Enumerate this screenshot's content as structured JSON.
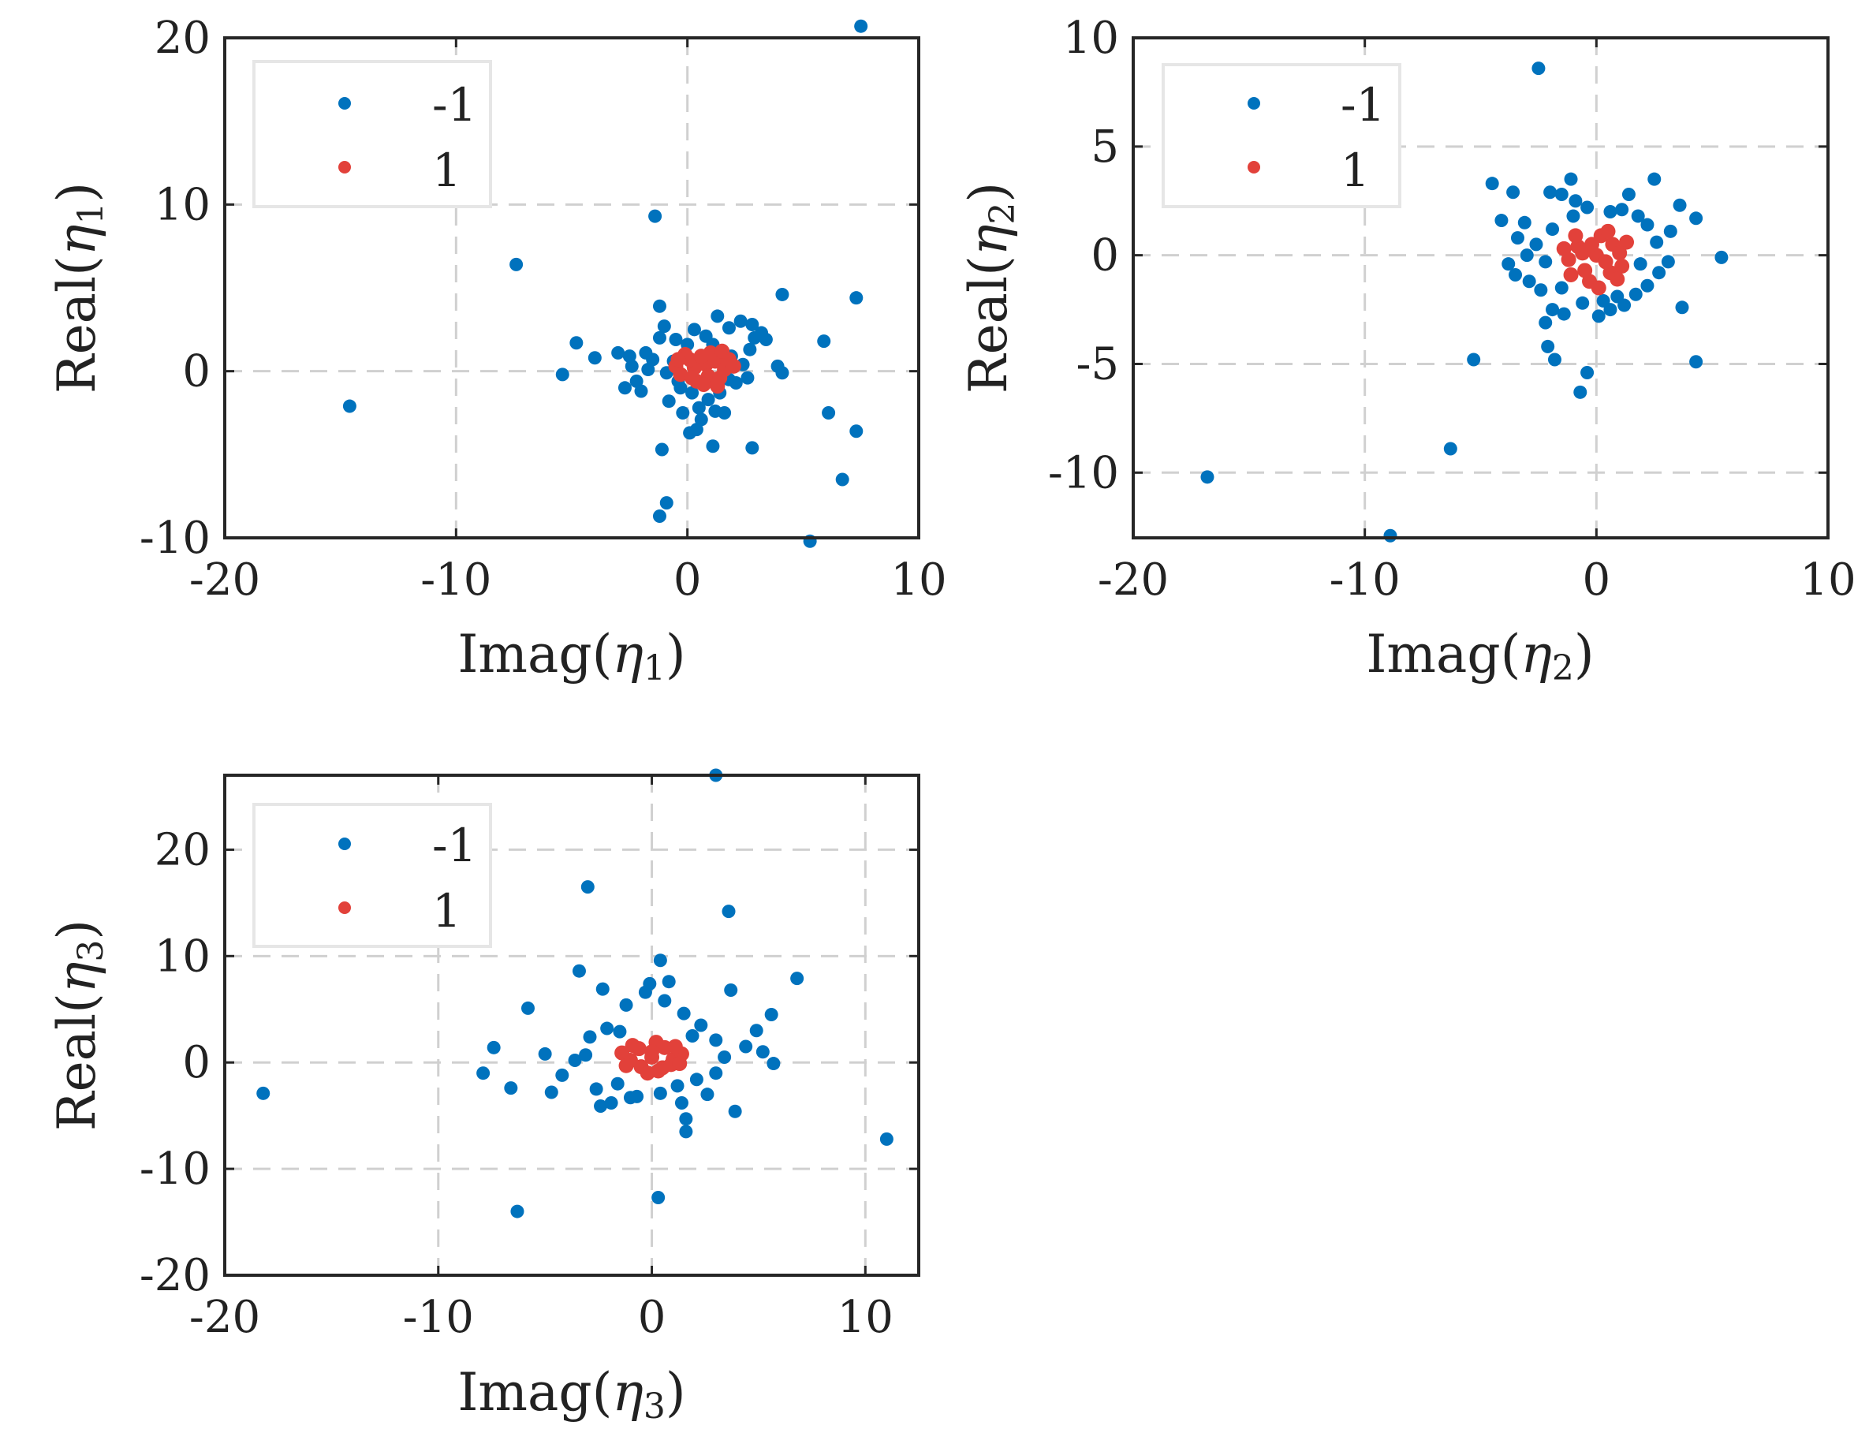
{
  "colors": {
    "series_neg": "#0072bd",
    "series_pos": "#e2413a",
    "grid": "#d0d0d0",
    "axes": "#262626",
    "legend_border": "#e6e6e6"
  },
  "chart_data": [
    {
      "type": "scatter",
      "id": "eta1",
      "xlabel_prefix": "Imag(",
      "xlabel_sym": "η",
      "xlabel_sub": "1",
      "xlabel_suffix": ")",
      "ylabel_prefix": "Real(",
      "ylabel_sym": "η",
      "ylabel_sub": "1",
      "ylabel_suffix": ")",
      "xlim": [
        -20,
        10
      ],
      "ylim": [
        -10,
        20
      ],
      "xticks": [
        -20,
        -10,
        0,
        10
      ],
      "xtick_labels": [
        "-20",
        "-10",
        "0",
        "10"
      ],
      "yticks": [
        -10,
        0,
        10,
        20
      ],
      "ytick_labels": [
        "-10",
        "0",
        "10",
        "20"
      ],
      "grid": true,
      "legend": {
        "location": "top-left",
        "entries": [
          "-1",
          "1"
        ]
      },
      "series": [
        {
          "name": "-1",
          "color": "#0072bd",
          "points": [
            [
              7.5,
              20.7
            ],
            [
              -1.4,
              9.3
            ],
            [
              -7.4,
              6.4
            ],
            [
              -14.6,
              -2.1
            ],
            [
              7.3,
              4.4
            ],
            [
              4.1,
              4.6
            ],
            [
              5.9,
              1.8
            ],
            [
              6.1,
              -2.5
            ],
            [
              7.3,
              -3.6
            ],
            [
              6.7,
              -6.5
            ],
            [
              5.3,
              -10.2
            ],
            [
              -1.2,
              -8.7
            ],
            [
              -0.9,
              -7.9
            ],
            [
              -1.1,
              -4.7
            ],
            [
              2.8,
              -4.6
            ],
            [
              1.1,
              -4.5
            ],
            [
              -5.4,
              -0.2
            ],
            [
              -4.8,
              1.7
            ],
            [
              -4.0,
              0.8
            ],
            [
              -3.0,
              1.1
            ],
            [
              -2.5,
              0.9
            ],
            [
              -1.8,
              1.1
            ],
            [
              -1.2,
              2.0
            ],
            [
              -1.2,
              3.9
            ],
            [
              -1.0,
              2.7
            ],
            [
              -2.2,
              -0.6
            ],
            [
              -2.7,
              -1.0
            ],
            [
              -2.0,
              -1.2
            ],
            [
              -1.7,
              0.1
            ],
            [
              -0.8,
              -1.8
            ],
            [
              -0.2,
              -2.5
            ],
            [
              0.1,
              -3.7
            ],
            [
              0.4,
              -3.5
            ],
            [
              0.6,
              -2.9
            ],
            [
              1.2,
              -2.4
            ],
            [
              1.6,
              -2.5
            ],
            [
              1.8,
              -0.5
            ],
            [
              2.6,
              -0.4
            ],
            [
              2.4,
              0.4
            ],
            [
              2.7,
              1.3
            ],
            [
              2.9,
              2.0
            ],
            [
              3.2,
              2.3
            ],
            [
              3.9,
              0.3
            ],
            [
              4.1,
              -0.1
            ],
            [
              2.8,
              2.8
            ],
            [
              1.3,
              3.3
            ],
            [
              1.8,
              2.6
            ],
            [
              0.3,
              2.5
            ],
            [
              0.0,
              1.6
            ],
            [
              -0.5,
              1.9
            ],
            [
              -0.9,
              -0.1
            ],
            [
              -0.6,
              0.6
            ],
            [
              1.9,
              0.9
            ],
            [
              2.1,
              -0.7
            ],
            [
              0.9,
              -1.7
            ],
            [
              0.2,
              -1.3
            ],
            [
              -0.3,
              -1.0
            ],
            [
              1.4,
              -1.3
            ],
            [
              0.8,
              2.1
            ],
            [
              1.1,
              1.6
            ],
            [
              -1.5,
              0.7
            ],
            [
              -0.4,
              -0.6
            ],
            [
              3.4,
              1.9
            ],
            [
              2.3,
              3.0
            ],
            [
              0.5,
              -2.2
            ],
            [
              -2.4,
              0.3
            ]
          ]
        },
        {
          "name": "1",
          "color": "#e2413a",
          "points": [
            [
              0.8,
              0.4
            ],
            [
              0.3,
              0.2
            ],
            [
              1.2,
              0.6
            ],
            [
              -0.5,
              0.3
            ],
            [
              1.6,
              0.1
            ],
            [
              0.9,
              -0.3
            ],
            [
              0.1,
              0.7
            ],
            [
              1.4,
              -0.4
            ],
            [
              -0.3,
              -0.2
            ],
            [
              0.6,
              0.9
            ],
            [
              1.8,
              0.7
            ],
            [
              0.4,
              -0.6
            ],
            [
              1.0,
              1.1
            ],
            [
              -0.1,
              1.0
            ],
            [
              1.5,
              1.2
            ],
            [
              2.0,
              0.3
            ],
            [
              0.7,
              -0.8
            ],
            [
              -0.4,
              0.7
            ],
            [
              1.3,
              -0.9
            ],
            [
              0.2,
              -0.4
            ]
          ]
        }
      ]
    },
    {
      "type": "scatter",
      "id": "eta2",
      "xlabel_prefix": "Imag(",
      "xlabel_sym": "η",
      "xlabel_sub": "2",
      "xlabel_suffix": ")",
      "ylabel_prefix": "Real(",
      "ylabel_sym": "η",
      "ylabel_sub": "2",
      "ylabel_suffix": ")",
      "xlim": [
        -20,
        10
      ],
      "ylim": [
        -13,
        10
      ],
      "xticks": [
        -20,
        -10,
        0,
        10
      ],
      "xtick_labels": [
        "-20",
        "-10",
        "0",
        "10"
      ],
      "yticks": [
        -10,
        -5,
        0,
        5,
        10
      ],
      "ytick_labels": [
        "-10",
        "-5",
        "0",
        "5",
        "10"
      ],
      "grid": true,
      "legend": {
        "location": "top-left",
        "entries": [
          "-1",
          "1"
        ]
      },
      "series": [
        {
          "name": "-1",
          "color": "#0072bd",
          "points": [
            [
              -2.5,
              8.6
            ],
            [
              -16.8,
              -10.2
            ],
            [
              -8.9,
              -12.9
            ],
            [
              -6.3,
              -8.9
            ],
            [
              -5.3,
              -4.8
            ],
            [
              -1.8,
              -4.8
            ],
            [
              -2.1,
              -4.2
            ],
            [
              -0.7,
              -6.3
            ],
            [
              -0.4,
              -5.4
            ],
            [
              4.3,
              -4.9
            ],
            [
              3.7,
              -2.4
            ],
            [
              5.4,
              -0.1
            ],
            [
              4.3,
              1.7
            ],
            [
              3.6,
              2.3
            ],
            [
              2.5,
              3.5
            ],
            [
              1.4,
              2.8
            ],
            [
              -1.5,
              2.8
            ],
            [
              -2.0,
              2.9
            ],
            [
              -3.6,
              2.9
            ],
            [
              -4.5,
              3.3
            ],
            [
              -1.1,
              3.5
            ],
            [
              -4.1,
              1.6
            ],
            [
              -3.1,
              1.5
            ],
            [
              -3.4,
              0.8
            ],
            [
              -3.8,
              -0.4
            ],
            [
              -3.5,
              -0.9
            ],
            [
              -2.9,
              -1.2
            ],
            [
              -2.4,
              -1.6
            ],
            [
              -1.9,
              -2.5
            ],
            [
              -2.2,
              -3.1
            ],
            [
              -1.4,
              -2.7
            ],
            [
              -0.6,
              -2.2
            ],
            [
              0.1,
              -2.8
            ],
            [
              0.6,
              -2.5
            ],
            [
              1.2,
              -2.3
            ],
            [
              1.7,
              -1.8
            ],
            [
              2.2,
              -1.4
            ],
            [
              2.7,
              -0.8
            ],
            [
              3.1,
              -0.3
            ],
            [
              2.6,
              0.6
            ],
            [
              2.2,
              1.4
            ],
            [
              1.8,
              1.8
            ],
            [
              1.1,
              2.1
            ],
            [
              0.6,
              2.0
            ],
            [
              -0.4,
              2.2
            ],
            [
              -1.0,
              1.8
            ],
            [
              -1.9,
              1.2
            ],
            [
              -2.6,
              0.5
            ],
            [
              -2.2,
              -0.3
            ],
            [
              -1.5,
              -1.5
            ],
            [
              0.9,
              -1.9
            ],
            [
              1.9,
              -0.4
            ],
            [
              -0.9,
              2.5
            ],
            [
              3.2,
              1.1
            ],
            [
              -3.0,
              0.0
            ],
            [
              0.3,
              -2.1
            ]
          ]
        },
        {
          "name": "1",
          "color": "#e2413a",
          "points": [
            [
              0.0,
              0.0
            ],
            [
              -0.8,
              0.4
            ],
            [
              0.7,
              0.5
            ],
            [
              -0.5,
              -0.7
            ],
            [
              0.6,
              -0.8
            ],
            [
              -1.2,
              -0.2
            ],
            [
              1.0,
              0.1
            ],
            [
              0.2,
              0.9
            ],
            [
              -0.3,
              -1.2
            ],
            [
              0.4,
              -0.3
            ],
            [
              -0.9,
              0.9
            ],
            [
              1.1,
              -0.5
            ],
            [
              -1.4,
              0.3
            ],
            [
              0.5,
              1.1
            ],
            [
              0.1,
              -1.5
            ],
            [
              -0.6,
              0.1
            ],
            [
              1.3,
              0.6
            ],
            [
              -1.1,
              -0.9
            ],
            [
              0.9,
              -1.1
            ],
            [
              -0.2,
              0.5
            ]
          ]
        }
      ]
    },
    {
      "type": "scatter",
      "id": "eta3",
      "xlabel_prefix": "Imag(",
      "xlabel_sym": "η",
      "xlabel_sub": "3",
      "xlabel_suffix": ")",
      "ylabel_prefix": "Real(",
      "ylabel_sym": "η",
      "ylabel_sub": "3",
      "ylabel_suffix": ")",
      "xlim": [
        -20,
        12.5
      ],
      "ylim": [
        -20,
        27
      ],
      "xticks": [
        -20,
        -10,
        0,
        10
      ],
      "xtick_labels": [
        "-20",
        "-10",
        "0",
        "10"
      ],
      "yticks": [
        -20,
        -10,
        0,
        10,
        20
      ],
      "ytick_labels": [
        "-20",
        "-10",
        "0",
        "10",
        "20"
      ],
      "grid": true,
      "legend": {
        "location": "top-left",
        "entries": [
          "-1",
          "1"
        ]
      },
      "series": [
        {
          "name": "-1",
          "color": "#0072bd",
          "points": [
            [
              3.0,
              27.0
            ],
            [
              -3.0,
              16.5
            ],
            [
              3.6,
              14.2
            ],
            [
              -18.2,
              -2.9
            ],
            [
              11.0,
              -7.2
            ],
            [
              -6.3,
              -14.0
            ],
            [
              0.3,
              -12.7
            ],
            [
              6.8,
              7.9
            ],
            [
              -3.4,
              8.6
            ],
            [
              -2.3,
              6.9
            ],
            [
              3.7,
              6.8
            ],
            [
              0.4,
              9.6
            ],
            [
              -5.8,
              5.1
            ],
            [
              5.6,
              4.5
            ],
            [
              4.9,
              3.0
            ],
            [
              5.7,
              -0.1
            ],
            [
              5.2,
              1.0
            ],
            [
              3.9,
              -4.6
            ],
            [
              1.6,
              -6.5
            ],
            [
              1.6,
              -5.3
            ],
            [
              -2.4,
              -4.1
            ],
            [
              -1.9,
              -3.8
            ],
            [
              -6.6,
              -2.4
            ],
            [
              -5.0,
              0.8
            ],
            [
              -7.9,
              -1.0
            ],
            [
              -7.4,
              1.4
            ],
            [
              -4.7,
              -2.8
            ],
            [
              -4.2,
              -1.2
            ],
            [
              -3.1,
              0.7
            ],
            [
              -2.6,
              -2.5
            ],
            [
              -1.6,
              -2.0
            ],
            [
              -0.7,
              -3.2
            ],
            [
              0.4,
              -2.9
            ],
            [
              1.2,
              -2.2
            ],
            [
              2.1,
              -1.6
            ],
            [
              3.0,
              -1.0
            ],
            [
              3.4,
              0.5
            ],
            [
              3.0,
              2.1
            ],
            [
              2.3,
              3.5
            ],
            [
              1.5,
              4.6
            ],
            [
              0.6,
              5.8
            ],
            [
              -0.3,
              6.6
            ],
            [
              -1.2,
              5.4
            ],
            [
              -2.1,
              3.2
            ],
            [
              -2.9,
              2.4
            ],
            [
              -1.5,
              2.9
            ],
            [
              1.9,
              2.5
            ],
            [
              2.6,
              -3.0
            ],
            [
              -0.1,
              7.4
            ],
            [
              0.8,
              7.6
            ],
            [
              -3.6,
              0.2
            ],
            [
              4.4,
              1.5
            ],
            [
              -1.0,
              -3.3
            ],
            [
              1.4,
              -3.8
            ]
          ]
        },
        {
          "name": "1",
          "color": "#e2413a",
          "points": [
            [
              0.0,
              0.5
            ],
            [
              -1.0,
              0.2
            ],
            [
              1.0,
              0.3
            ],
            [
              -0.6,
              1.3
            ],
            [
              0.6,
              1.4
            ],
            [
              -0.5,
              -0.4
            ],
            [
              0.5,
              -0.5
            ],
            [
              -1.4,
              0.9
            ],
            [
              1.4,
              0.8
            ],
            [
              0.2,
              1.9
            ],
            [
              -0.2,
              -1.0
            ],
            [
              0.9,
              -0.2
            ],
            [
              -0.9,
              1.6
            ],
            [
              1.1,
              1.5
            ],
            [
              0.0,
              1.0
            ],
            [
              -1.2,
              -0.3
            ],
            [
              1.3,
              -0.1
            ],
            [
              0.3,
              -0.8
            ]
          ]
        }
      ]
    }
  ]
}
